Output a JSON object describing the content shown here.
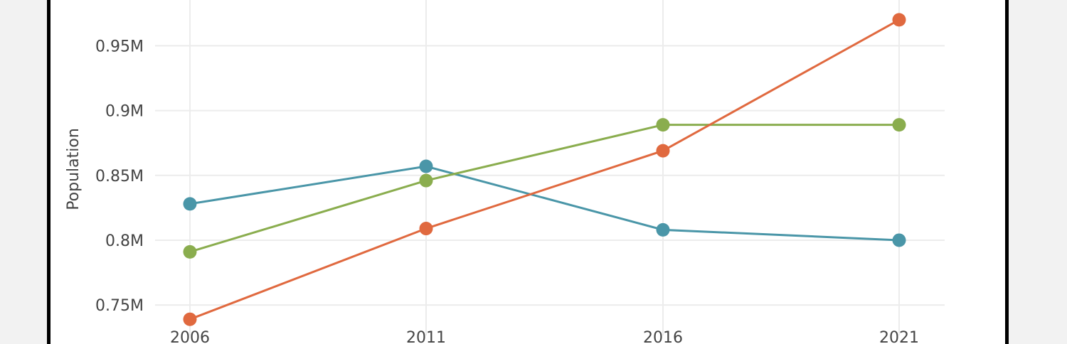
{
  "chart_data": {
    "type": "line",
    "x": [
      "2006",
      "2011",
      "2016",
      "2021"
    ],
    "ylabel": "Population",
    "xlabel": "",
    "ylim": [
      0.7265,
      0.9853
    ],
    "ytick_values": [
      0.75,
      0.8,
      0.85,
      0.9,
      0.95
    ],
    "ytick_labels": [
      "0.75M",
      "0.8M",
      "0.85M",
      "0.9M",
      "0.95M"
    ],
    "grid": true,
    "series": [
      {
        "color": "#4a96a8",
        "values": [
          0.828,
          0.857,
          0.808,
          0.8
        ]
      },
      {
        "color": "#8aad4e",
        "values": [
          0.791,
          0.846,
          0.889,
          0.889
        ]
      },
      {
        "color": "#e0693f",
        "values": [
          0.739,
          0.809,
          0.869,
          0.97
        ]
      }
    ]
  }
}
